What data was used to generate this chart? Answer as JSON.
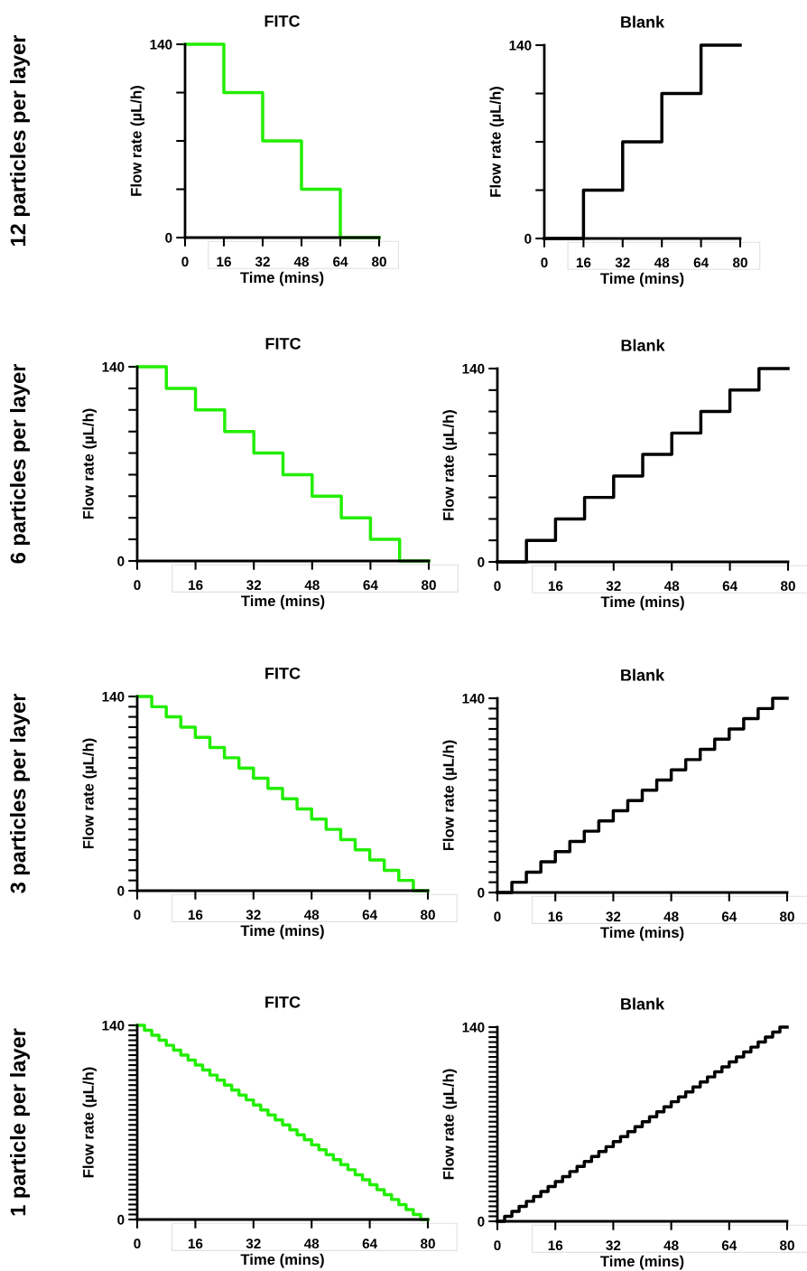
{
  "chart_data": [
    {
      "type": "step",
      "title": "FITC",
      "xlabel": "Time (mins)",
      "ylabel": "Flow rate (µL/h)",
      "annotations": [
        "12 particles per layer"
      ],
      "color": "#22ee00",
      "x": [
        0,
        16,
        32,
        48,
        64,
        80
      ],
      "values": [
        140,
        105,
        70,
        35,
        0,
        0
      ],
      "xlim": [
        0,
        80
      ],
      "ylim": [
        0,
        140
      ],
      "xticks": [
        0,
        16,
        32,
        48,
        64,
        80
      ],
      "yticks": [
        0,
        {
          "value": 35,
          "label": null
        },
        {
          "value": 70,
          "label": null
        },
        {
          "value": 105,
          "label": null
        },
        140
      ]
    },
    {
      "type": "step",
      "title": "Blank",
      "xlabel": "Time (mins)",
      "ylabel": "Flow rate (µL/h)",
      "color": "#000000",
      "x": [
        0,
        16,
        32,
        48,
        64,
        80
      ],
      "values": [
        0,
        35,
        70,
        105,
        140,
        140
      ],
      "xlim": [
        0,
        80
      ],
      "ylim": [
        0,
        140
      ],
      "xticks": [
        0,
        16,
        32,
        48,
        64,
        80
      ],
      "yticks": [
        0,
        {
          "value": 35,
          "label": null
        },
        {
          "value": 70,
          "label": null
        },
        {
          "value": 105,
          "label": null
        },
        140
      ]
    },
    {
      "type": "step",
      "title": "FITC",
      "xlabel": "Time (mins)",
      "ylabel": "Flow rate (µL/h)",
      "annotations": [
        "6 particles per layer"
      ],
      "color": "#22ee00",
      "x": [
        0,
        8,
        16,
        24,
        32,
        40,
        48,
        56,
        64,
        72,
        80
      ],
      "values": [
        140,
        124.4,
        108.9,
        93.3,
        77.8,
        62.2,
        46.7,
        31.1,
        15.6,
        0,
        0
      ],
      "xlim": [
        0,
        80
      ],
      "ylim": [
        0,
        140
      ],
      "xticks": [
        0,
        16,
        32,
        48,
        64,
        80
      ],
      "yticks": [
        0,
        {
          "value": 15.6,
          "label": null
        },
        {
          "value": 31.1,
          "label": null
        },
        {
          "value": 46.7,
          "label": null
        },
        {
          "value": 62.2,
          "label": null
        },
        {
          "value": 77.8,
          "label": null
        },
        {
          "value": 93.3,
          "label": null
        },
        {
          "value": 108.9,
          "label": null
        },
        {
          "value": 124.4,
          "label": null
        },
        140
      ]
    },
    {
      "type": "step",
      "title": "Blank",
      "xlabel": "Time (mins)",
      "ylabel": "Flow rate (µL/h)",
      "color": "#000000",
      "x": [
        0,
        8,
        16,
        24,
        32,
        40,
        48,
        56,
        64,
        72,
        80
      ],
      "values": [
        0,
        15.6,
        31.1,
        46.7,
        62.2,
        77.8,
        93.3,
        108.9,
        124.4,
        140,
        140
      ],
      "xlim": [
        0,
        80
      ],
      "ylim": [
        0,
        140
      ],
      "xticks": [
        0,
        16,
        32,
        48,
        64,
        80
      ],
      "yticks": [
        0,
        {
          "value": 15.6,
          "label": null
        },
        {
          "value": 31.1,
          "label": null
        },
        {
          "value": 46.7,
          "label": null
        },
        {
          "value": 62.2,
          "label": null
        },
        {
          "value": 77.8,
          "label": null
        },
        {
          "value": 93.3,
          "label": null
        },
        {
          "value": 108.9,
          "label": null
        },
        {
          "value": 124.4,
          "label": null
        },
        140
      ]
    },
    {
      "type": "step",
      "title": "FITC",
      "xlabel": "Time (mins)",
      "ylabel": "Flow rate (µL/h)",
      "annotations": [
        "3 particles per layer"
      ],
      "color": "#22ee00",
      "x": [
        0,
        4,
        8,
        12,
        16,
        20,
        24,
        28,
        32,
        36,
        40,
        44,
        48,
        52,
        56,
        60,
        64,
        68,
        72,
        76,
        80
      ],
      "values": [
        140,
        132.6,
        125.3,
        117.9,
        110.5,
        103.2,
        95.8,
        88.4,
        81.1,
        73.7,
        66.3,
        58.9,
        51.6,
        44.2,
        36.8,
        29.5,
        22.1,
        14.7,
        7.4,
        0,
        0
      ],
      "xlim": [
        0,
        80
      ],
      "ylim": [
        0,
        140
      ],
      "xticks": [
        0,
        16,
        32,
        48,
        64,
        80
      ],
      "yticks": [
        0,
        {
          "value": 7.4,
          "label": null
        },
        {
          "value": 14.7,
          "label": null
        },
        {
          "value": 22.1,
          "label": null
        },
        {
          "value": 29.5,
          "label": null
        },
        {
          "value": 36.8,
          "label": null
        },
        {
          "value": 44.2,
          "label": null
        },
        {
          "value": 51.6,
          "label": null
        },
        {
          "value": 58.9,
          "label": null
        },
        {
          "value": 66.3,
          "label": null
        },
        {
          "value": 73.7,
          "label": null
        },
        {
          "value": 81.1,
          "label": null
        },
        {
          "value": 88.4,
          "label": null
        },
        {
          "value": 95.8,
          "label": null
        },
        {
          "value": 103.2,
          "label": null
        },
        {
          "value": 110.5,
          "label": null
        },
        {
          "value": 117.9,
          "label": null
        },
        {
          "value": 125.3,
          "label": null
        },
        {
          "value": 132.6,
          "label": null
        },
        140
      ]
    },
    {
      "type": "step",
      "title": "Blank",
      "xlabel": "Time (mins)",
      "ylabel": "Flow rate (µL/h)",
      "color": "#000000",
      "x": [
        0,
        4,
        8,
        12,
        16,
        20,
        24,
        28,
        32,
        36,
        40,
        44,
        48,
        52,
        56,
        60,
        64,
        68,
        72,
        76,
        80
      ],
      "values": [
        0,
        7.4,
        14.7,
        22.1,
        29.5,
        36.8,
        44.2,
        51.6,
        58.9,
        66.3,
        73.7,
        81.1,
        88.4,
        95.8,
        103.2,
        110.5,
        117.9,
        125.3,
        132.6,
        140,
        140
      ],
      "xlim": [
        0,
        80
      ],
      "ylim": [
        0,
        140
      ],
      "xticks": [
        0,
        16,
        32,
        48,
        64,
        80
      ],
      "yticks": [
        0,
        {
          "value": 7.4,
          "label": null
        },
        {
          "value": 14.7,
          "label": null
        },
        {
          "value": 22.1,
          "label": null
        },
        {
          "value": 29.5,
          "label": null
        },
        {
          "value": 36.8,
          "label": null
        },
        {
          "value": 44.2,
          "label": null
        },
        {
          "value": 51.6,
          "label": null
        },
        {
          "value": 58.9,
          "label": null
        },
        {
          "value": 66.3,
          "label": null
        },
        {
          "value": 73.7,
          "label": null
        },
        {
          "value": 81.1,
          "label": null
        },
        {
          "value": 88.4,
          "label": null
        },
        {
          "value": 95.8,
          "label": null
        },
        {
          "value": 103.2,
          "label": null
        },
        {
          "value": 110.5,
          "label": null
        },
        {
          "value": 117.9,
          "label": null
        },
        {
          "value": 125.3,
          "label": null
        },
        {
          "value": 132.6,
          "label": null
        },
        140
      ]
    },
    {
      "type": "step",
      "title": "FITC",
      "xlabel": "Time (mins)",
      "ylabel": "Flow rate (µL/h)",
      "annotations": [
        "1 particle per layer"
      ],
      "color": "#22ee00",
      "x": [
        0,
        2,
        4,
        6,
        8,
        10,
        12,
        14,
        16,
        18,
        20,
        22,
        24,
        26,
        28,
        30,
        32,
        34,
        36,
        38,
        40,
        42,
        44,
        46,
        48,
        50,
        52,
        54,
        56,
        58,
        60,
        62,
        64,
        66,
        68,
        70,
        72,
        74,
        76,
        78,
        80
      ],
      "values": [
        140,
        136.4,
        132.8,
        129.2,
        125.6,
        122.1,
        118.5,
        114.9,
        111.3,
        107.7,
        104.1,
        100.5,
        96.9,
        93.3,
        89.7,
        86.2,
        82.6,
        79.0,
        75.4,
        71.8,
        68.2,
        64.6,
        61.0,
        57.4,
        53.8,
        50.3,
        46.7,
        43.1,
        39.5,
        35.9,
        32.3,
        28.7,
        25.1,
        21.5,
        17.9,
        14.4,
        10.8,
        7.2,
        3.6,
        0,
        0
      ],
      "xlim": [
        0,
        80
      ],
      "ylim": [
        0,
        140
      ],
      "xticks": [
        0,
        16,
        32,
        48,
        64,
        80
      ],
      "yticks": [
        0,
        {
          "value": 3.6,
          "label": null
        },
        {
          "value": 7.2,
          "label": null
        },
        {
          "value": 10.8,
          "label": null
        },
        {
          "value": 14.4,
          "label": null
        },
        {
          "value": 17.9,
          "label": null
        },
        {
          "value": 21.5,
          "label": null
        },
        {
          "value": 25.1,
          "label": null
        },
        {
          "value": 28.7,
          "label": null
        },
        {
          "value": 32.3,
          "label": null
        },
        {
          "value": 35.9,
          "label": null
        },
        {
          "value": 39.5,
          "label": null
        },
        {
          "value": 43.1,
          "label": null
        },
        {
          "value": 46.7,
          "label": null
        },
        {
          "value": 50.3,
          "label": null
        },
        {
          "value": 53.8,
          "label": null
        },
        {
          "value": 57.4,
          "label": null
        },
        {
          "value": 61.0,
          "label": null
        },
        {
          "value": 64.6,
          "label": null
        },
        {
          "value": 68.2,
          "label": null
        },
        {
          "value": 71.8,
          "label": null
        },
        {
          "value": 75.4,
          "label": null
        },
        {
          "value": 79.0,
          "label": null
        },
        {
          "value": 82.6,
          "label": null
        },
        {
          "value": 86.2,
          "label": null
        },
        {
          "value": 89.7,
          "label": null
        },
        {
          "value": 93.3,
          "label": null
        },
        {
          "value": 96.9,
          "label": null
        },
        {
          "value": 100.5,
          "label": null
        },
        {
          "value": 104.1,
          "label": null
        },
        {
          "value": 107.7,
          "label": null
        },
        {
          "value": 111.3,
          "label": null
        },
        {
          "value": 114.9,
          "label": null
        },
        {
          "value": 118.5,
          "label": null
        },
        {
          "value": 122.1,
          "label": null
        },
        {
          "value": 125.6,
          "label": null
        },
        {
          "value": 129.2,
          "label": null
        },
        {
          "value": 132.8,
          "label": null
        },
        {
          "value": 136.4,
          "label": null
        },
        140
      ]
    },
    {
      "type": "step",
      "title": "Blank",
      "xlabel": "Time (mins)",
      "ylabel": "Flow rate (µL/h)",
      "color": "#000000",
      "x": [
        0,
        2,
        4,
        6,
        8,
        10,
        12,
        14,
        16,
        18,
        20,
        22,
        24,
        26,
        28,
        30,
        32,
        34,
        36,
        38,
        40,
        42,
        44,
        46,
        48,
        50,
        52,
        54,
        56,
        58,
        60,
        62,
        64,
        66,
        68,
        70,
        72,
        74,
        76,
        78,
        80
      ],
      "values": [
        0,
        3.6,
        7.2,
        10.8,
        14.4,
        17.9,
        21.5,
        25.1,
        28.7,
        32.3,
        35.9,
        39.5,
        43.1,
        46.7,
        50.3,
        53.8,
        57.4,
        61.0,
        64.6,
        68.2,
        71.8,
        75.4,
        79.0,
        82.6,
        86.2,
        89.7,
        93.3,
        96.9,
        100.5,
        104.1,
        107.7,
        111.3,
        114.9,
        118.5,
        122.1,
        125.6,
        129.2,
        132.8,
        136.4,
        140,
        140
      ],
      "xlim": [
        0,
        80
      ],
      "ylim": [
        0,
        140
      ],
      "xticks": [
        0,
        16,
        32,
        48,
        64,
        80
      ],
      "yticks": [
        0,
        {
          "value": 3.6,
          "label": null
        },
        {
          "value": 7.2,
          "label": null
        },
        {
          "value": 10.8,
          "label": null
        },
        {
          "value": 14.4,
          "label": null
        },
        {
          "value": 17.9,
          "label": null
        },
        {
          "value": 21.5,
          "label": null
        },
        {
          "value": 25.1,
          "label": null
        },
        {
          "value": 28.7,
          "label": null
        },
        {
          "value": 32.3,
          "label": null
        },
        {
          "value": 35.9,
          "label": null
        },
        {
          "value": 39.5,
          "label": null
        },
        {
          "value": 43.1,
          "label": null
        },
        {
          "value": 46.7,
          "label": null
        },
        {
          "value": 50.3,
          "label": null
        },
        {
          "value": 53.8,
          "label": null
        },
        {
          "value": 57.4,
          "label": null
        },
        {
          "value": 61.0,
          "label": null
        },
        {
          "value": 64.6,
          "label": null
        },
        {
          "value": 68.2,
          "label": null
        },
        {
          "value": 71.8,
          "label": null
        },
        {
          "value": 75.4,
          "label": null
        },
        {
          "value": 79.0,
          "label": null
        },
        {
          "value": 82.6,
          "label": null
        },
        {
          "value": 86.2,
          "label": null
        },
        {
          "value": 89.7,
          "label": null
        },
        {
          "value": 93.3,
          "label": null
        },
        {
          "value": 96.9,
          "label": null
        },
        {
          "value": 100.5,
          "label": null
        },
        {
          "value": 104.1,
          "label": null
        },
        {
          "value": 107.7,
          "label": null
        },
        {
          "value": 111.3,
          "label": null
        },
        {
          "value": 114.9,
          "label": null
        },
        {
          "value": 118.5,
          "label": null
        },
        {
          "value": 122.1,
          "label": null
        },
        {
          "value": 125.6,
          "label": null
        },
        {
          "value": 129.2,
          "label": null
        },
        {
          "value": 132.8,
          "label": null
        },
        {
          "value": 136.4,
          "label": null
        },
        140
      ]
    }
  ]
}
